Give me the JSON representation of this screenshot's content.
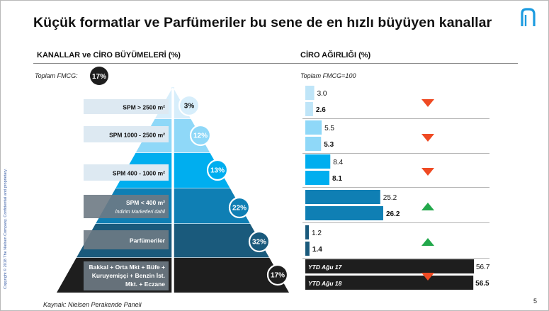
{
  "slide": {
    "title": "Küçük formatlar ve Parfümeriler bu sene de en hızlı büyüyen kanallar",
    "left_header": "KANALLAR ve CİRO BÜYÜMELERİ (%)",
    "right_header": "CİRO AĞIRLIĞI (%)",
    "total_label": "Toplam FMCG:",
    "total_growth": "17%",
    "total_weight_label": "Toplam FMCG=100",
    "source": "Kaynak: Nielsen Perakende Paneli",
    "side_note": "Copyright © 2018 The Nielsen Company. Confidential and proprietary.",
    "page_number": "5"
  },
  "colors": {
    "level_1": "#d7eefb",
    "level_2": "#8fd8f8",
    "level_3": "#00aeef",
    "level_4": "#0f7fb4",
    "level_5": "#1a5a7c",
    "level_6": "#1e1e1e",
    "up_arrow": "#22a84b",
    "down_arrow": "#ef4a23"
  },
  "chart_data": {
    "type": "bar",
    "title": "CİRO AĞIRLIĞI (%)",
    "categories": [
      "SPM > 2500 m²",
      "SPM 1000 - 2500 m²",
      "SPM 400 - 1000 m²",
      "SPM < 400 m²",
      "Parfümeriler",
      "Bakkal + Orta Mkt + Büfe + Kuruyemişçi + Benzin İst. Mkt. + Eczane"
    ],
    "category_sublabels": [
      "",
      "",
      "",
      "İndirim Marketleri dahil",
      "",
      ""
    ],
    "growth": [
      "3%",
      "12%",
      "13%",
      "22%",
      "32%",
      "17%"
    ],
    "series": [
      {
        "name": "YTD Ağu 17",
        "values": [
          3.0,
          5.5,
          8.4,
          25.2,
          1.2,
          56.7
        ]
      },
      {
        "name": "YTD Ağu 18",
        "values": [
          2.6,
          5.3,
          8.1,
          26.2,
          1.4,
          56.5
        ]
      }
    ],
    "value_labels": [
      [
        "3.0",
        "2.6"
      ],
      [
        "5.5",
        "5.3"
      ],
      [
        "8.4",
        "8.1"
      ],
      [
        "25.2",
        "26.2"
      ],
      [
        "1.2",
        "1.4"
      ],
      [
        "56.7",
        "56.5"
      ]
    ],
    "trend": [
      "down",
      "down",
      "down",
      "up",
      "up",
      "down"
    ],
    "xlim": [
      0,
      56.7
    ]
  }
}
